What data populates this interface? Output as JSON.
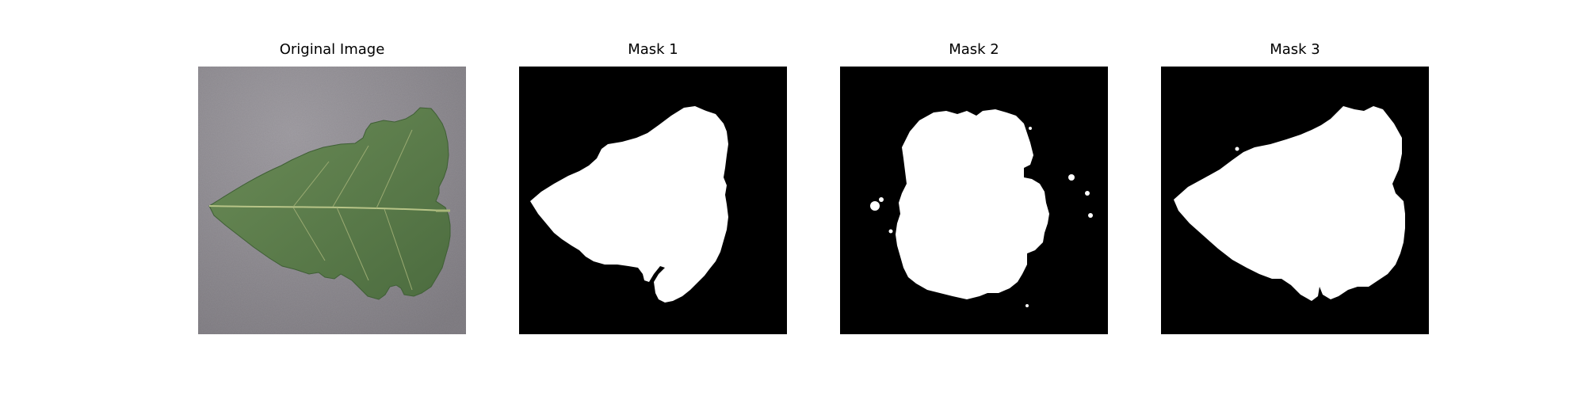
{
  "figure": {
    "panels": [
      {
        "title": "Original Image",
        "kind": "photo",
        "content": "tomato-leaf"
      },
      {
        "title": "Mask 1",
        "kind": "mask"
      },
      {
        "title": "Mask 2",
        "kind": "mask"
      },
      {
        "title": "Mask 3",
        "kind": "mask"
      }
    ],
    "colors": {
      "background": "#ffffff",
      "mask_background": "#000000",
      "mask_foreground": "#ffffff",
      "surface_gray": "#8a878c",
      "leaf_green": "#5d7f4c",
      "leaf_dark": "#3f5f35",
      "vein": "#a9b77a"
    }
  }
}
